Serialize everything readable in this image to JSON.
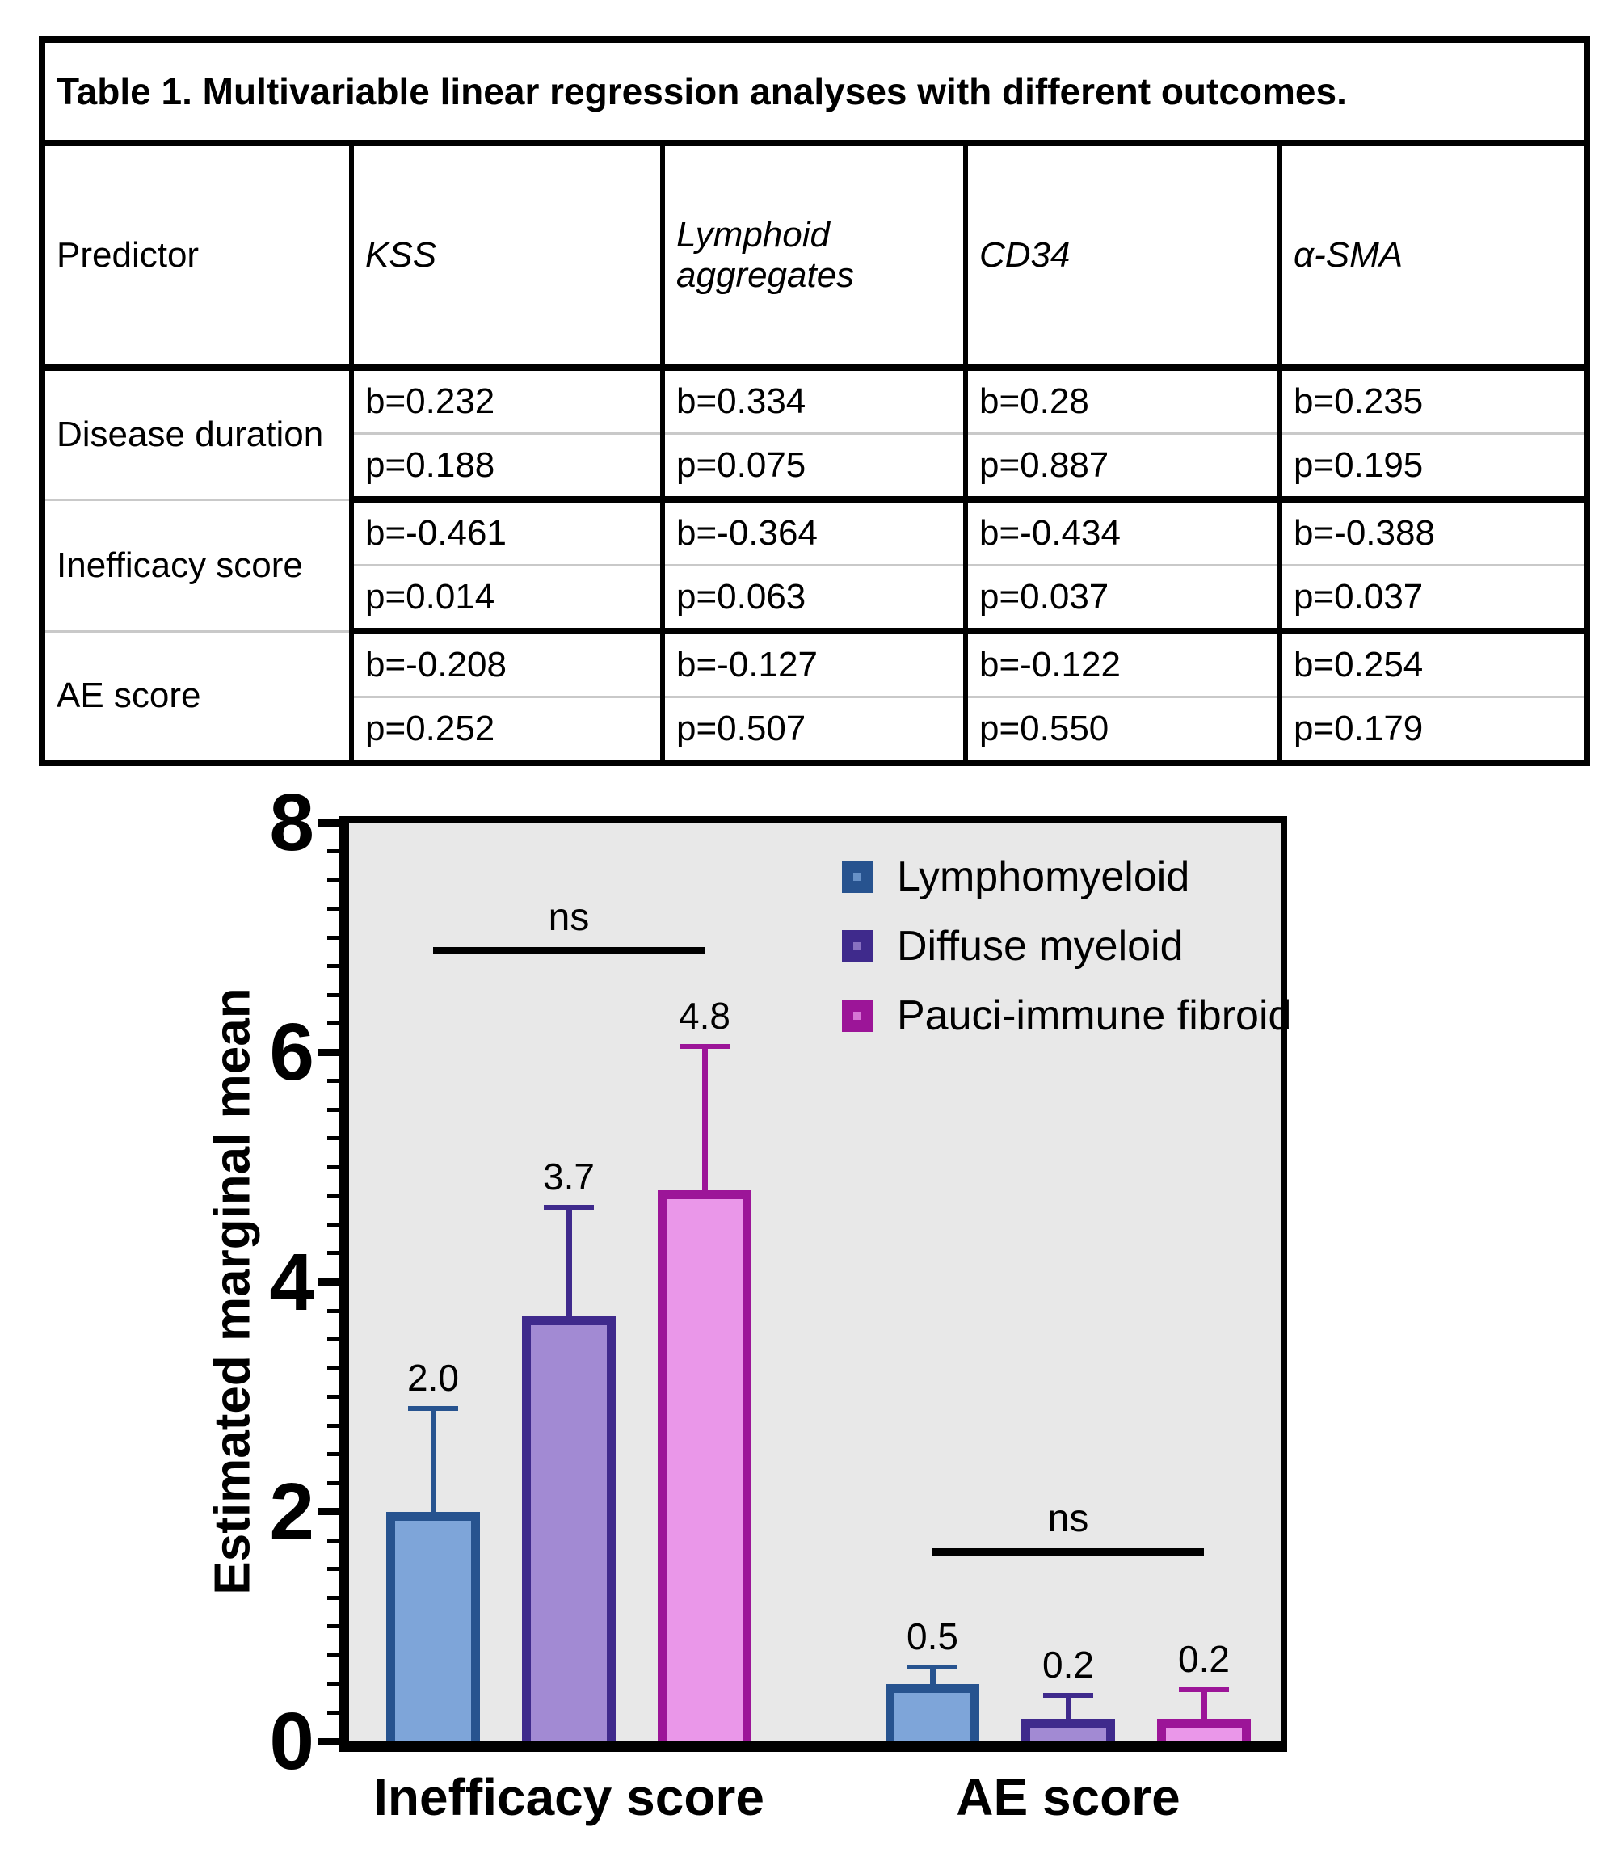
{
  "table": {
    "title": "Table 1. Multivariable linear regression analyses with different outcomes.",
    "header": [
      "Predictor",
      "KSS",
      "Lymphoid aggregates",
      "CD34",
      "α-SMA"
    ],
    "rows": [
      {
        "predictor": "Disease duration",
        "b": [
          "b=0.232",
          "b=0.334",
          "b=0.28",
          "b=0.235"
        ],
        "p": [
          "p=0.188",
          "p=0.075",
          "p=0.887",
          "p=0.195"
        ]
      },
      {
        "predictor": "Inefficacy score",
        "b": [
          "b=-0.461",
          "b=-0.364",
          "b=-0.434",
          "b=-0.388"
        ],
        "p": [
          "p=0.014",
          "p=0.063",
          "p=0.037",
          "p=0.037"
        ]
      },
      {
        "predictor": "AE score",
        "b": [
          "b=-0.208",
          "b=-0.127",
          "b=-0.122",
          "b=0.254"
        ],
        "p": [
          "p=0.252",
          "p=0.507",
          "p=0.550",
          "p=0.179"
        ]
      }
    ]
  },
  "chart_data": {
    "type": "bar",
    "ylabel": "Estimated marginal mean",
    "ylim": [
      0,
      8
    ],
    "ytick_major": [
      0,
      2,
      4,
      6,
      8
    ],
    "ytick_minor_step": 0.25,
    "grid": false,
    "plot_background": "#E8E8E8",
    "legend_position": "top-right-inside",
    "categories": [
      "Inefficacy score",
      "AE score"
    ],
    "series": [
      {
        "name": "Lymphomyeloid",
        "values": [
          2.0,
          0.5
        ],
        "error_top": [
          2.9,
          0.65
        ],
        "edge_color": "#27538F",
        "fill_color": "#7EA5D9"
      },
      {
        "name": "Diffuse myeloid",
        "values": [
          3.7,
          0.2
        ],
        "error_top": [
          4.65,
          0.4
        ],
        "edge_color": "#3F2A8C",
        "fill_color": "#A28AD3"
      },
      {
        "name": "Pauci-immune fibroid",
        "values": [
          4.8,
          0.2
        ],
        "error_top": [
          6.05,
          0.45
        ],
        "edge_color": "#9C1598",
        "fill_color": "#EA97E9"
      }
    ],
    "bar_labels": [
      [
        "2.0",
        "3.7",
        "4.8"
      ],
      [
        "0.5",
        "0.2",
        "0.2"
      ]
    ],
    "annotations": [
      {
        "label": "ns",
        "category": 0,
        "y": 6.85
      },
      {
        "label": "ns",
        "category": 1,
        "y": 1.62
      }
    ]
  }
}
